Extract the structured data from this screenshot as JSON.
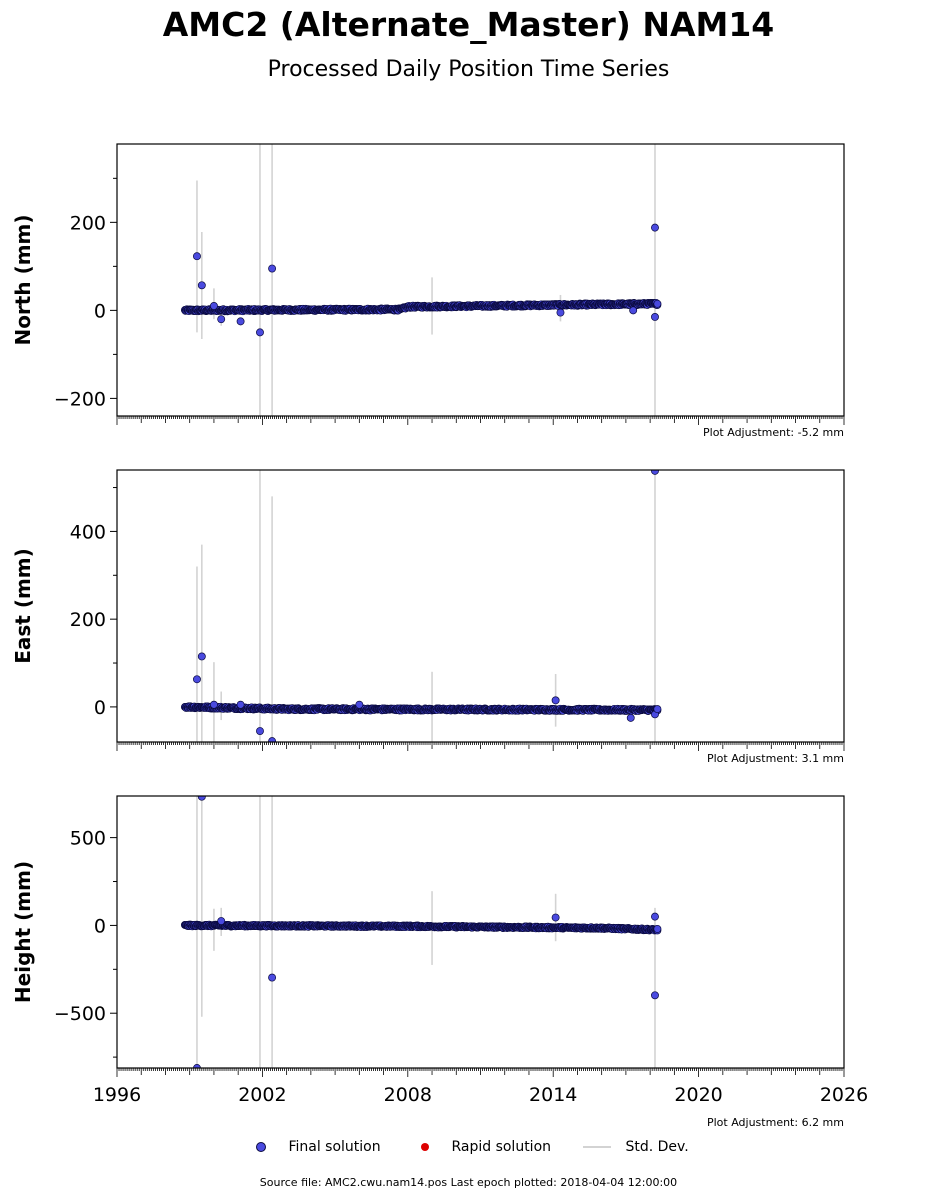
{
  "page": {
    "title": "AMC2 (Alternate_Master) NAM14",
    "subtitle": "Processed Daily Position Time Series",
    "source": "Source file: AMC2.cwu.nam14.pos  Last epoch plotted: 2018-04-04 12:00:00"
  },
  "legend": {
    "final_label": "Final solution",
    "rapid_label": "Rapid solution",
    "std_label": "Std. Dev."
  },
  "colors": {
    "final": "#4a4adf",
    "final_edge": "#0a0a40",
    "rapid": "#dd0000",
    "std": "#d3d3d3"
  },
  "chart_data": [
    {
      "type": "scatter",
      "ylabel": "North (mm)",
      "xlim": [
        1996,
        2026
      ],
      "ylim": [
        -240,
        378
      ],
      "yticks": [
        -200,
        0,
        200
      ],
      "adjustment": "Plot Adjustment: -5.2 mm",
      "trend": [
        [
          1998.8,
          0
        ],
        [
          2007.7,
          2
        ],
        [
          2008.0,
          8
        ],
        [
          2018.3,
          15
        ]
      ],
      "noise": 2.5,
      "outliers": [
        {
          "x": 1999.3,
          "y": 123
        },
        {
          "x": 1999.5,
          "y": 57
        },
        {
          "x": 2000.0,
          "y": 10
        },
        {
          "x": 2000.3,
          "y": -20
        },
        {
          "x": 2001.1,
          "y": -25
        },
        {
          "x": 2001.9,
          "y": -50
        },
        {
          "x": 2002.4,
          "y": 95
        },
        {
          "x": 2014.3,
          "y": -5
        },
        {
          "x": 2017.3,
          "y": 0
        },
        {
          "x": 2018.2,
          "y": 188
        },
        {
          "x": 2018.2,
          "y": -15
        },
        {
          "x": 2018.3,
          "y": 15
        }
      ],
      "std_bars": [
        {
          "x": 1999.3,
          "lo": -50,
          "hi": 295
        },
        {
          "x": 1999.5,
          "lo": -65,
          "hi": 178
        },
        {
          "x": 2000.0,
          "lo": -20,
          "hi": 50
        },
        {
          "x": 2000.3,
          "lo": -35,
          "hi": 5
        },
        {
          "x": 2001.9,
          "lo": -240,
          "hi": 378
        },
        {
          "x": 2002.4,
          "lo": -240,
          "hi": 378
        },
        {
          "x": 2009.0,
          "lo": -55,
          "hi": 75
        },
        {
          "x": 2014.3,
          "lo": -25,
          "hi": 35
        },
        {
          "x": 2018.2,
          "lo": -240,
          "hi": 378
        }
      ]
    },
    {
      "type": "scatter",
      "ylabel": "East (mm)",
      "xlim": [
        1996,
        2026
      ],
      "ylim": [
        -80,
        540
      ],
      "yticks": [
        0,
        200,
        400
      ],
      "adjustment": "Plot Adjustment: 3.1 mm",
      "trend": [
        [
          1998.8,
          0
        ],
        [
          2003.0,
          -5
        ],
        [
          2018.3,
          -7
        ]
      ],
      "noise": 2.5,
      "outliers": [
        {
          "x": 1999.3,
          "y": 63
        },
        {
          "x": 1999.5,
          "y": 115
        },
        {
          "x": 2000.0,
          "y": 5
        },
        {
          "x": 2001.1,
          "y": 5
        },
        {
          "x": 2001.9,
          "y": -55
        },
        {
          "x": 2002.4,
          "y": -78
        },
        {
          "x": 2006.0,
          "y": 5
        },
        {
          "x": 2014.1,
          "y": 15
        },
        {
          "x": 2017.2,
          "y": -25
        },
        {
          "x": 2018.2,
          "y": 538
        },
        {
          "x": 2018.2,
          "y": -17
        },
        {
          "x": 2018.3,
          "y": -5
        }
      ],
      "std_bars": [
        {
          "x": 1999.3,
          "lo": -80,
          "hi": 320
        },
        {
          "x": 1999.5,
          "lo": -80,
          "hi": 370
        },
        {
          "x": 2000.0,
          "lo": -80,
          "hi": 102
        },
        {
          "x": 2000.3,
          "lo": -30,
          "hi": 35
        },
        {
          "x": 2001.9,
          "lo": -80,
          "hi": 540
        },
        {
          "x": 2002.4,
          "lo": -80,
          "hi": 480
        },
        {
          "x": 2009.0,
          "lo": -80,
          "hi": 80
        },
        {
          "x": 2014.1,
          "lo": -45,
          "hi": 75
        },
        {
          "x": 2018.2,
          "lo": -80,
          "hi": 540
        }
      ]
    },
    {
      "type": "scatter",
      "ylabel": "Height (mm)",
      "xlabel": "",
      "xlim": [
        1996,
        2026
      ],
      "ylim": [
        -812,
        737
      ],
      "yticks": [
        -500,
        0,
        500
      ],
      "xticks": [
        1996,
        2002,
        2008,
        2014,
        2020,
        2026
      ],
      "adjustment": "Plot Adjustment: 6.2 mm",
      "trend": [
        [
          1998.8,
          0
        ],
        [
          2008.0,
          -5
        ],
        [
          2016.0,
          -15
        ],
        [
          2018.3,
          -25
        ]
      ],
      "noise": 5,
      "outliers": [
        {
          "x": 1999.3,
          "y": -812
        },
        {
          "x": 1999.5,
          "y": 733
        },
        {
          "x": 2000.3,
          "y": 25
        },
        {
          "x": 2002.4,
          "y": -297
        },
        {
          "x": 2014.1,
          "y": 45
        },
        {
          "x": 2018.2,
          "y": 50
        },
        {
          "x": 2018.2,
          "y": -398
        },
        {
          "x": 2018.3,
          "y": -20
        }
      ],
      "std_bars": [
        {
          "x": 1999.3,
          "lo": -812,
          "hi": 737
        },
        {
          "x": 1999.5,
          "lo": -520,
          "hi": 737
        },
        {
          "x": 2000.0,
          "lo": -145,
          "hi": 95
        },
        {
          "x": 2000.3,
          "lo": -60,
          "hi": 100
        },
        {
          "x": 2001.9,
          "lo": -812,
          "hi": 737
        },
        {
          "x": 2002.4,
          "lo": -812,
          "hi": 737
        },
        {
          "x": 2009.0,
          "lo": -225,
          "hi": 195
        },
        {
          "x": 2014.1,
          "lo": -90,
          "hi": 180
        },
        {
          "x": 2018.2,
          "lo": -812,
          "hi": 100
        }
      ]
    }
  ]
}
